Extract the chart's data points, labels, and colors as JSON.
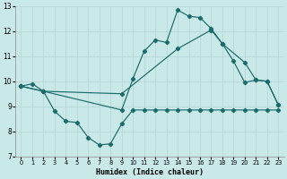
{
  "xlabel": "Humidex (Indice chaleur)",
  "bg_color": "#c9e8e8",
  "grid_color": "#dff0f0",
  "line_color": "#1a6b6b",
  "xlim": [
    -0.5,
    23.5
  ],
  "ylim": [
    7,
    13
  ],
  "xticks": [
    0,
    1,
    2,
    3,
    4,
    5,
    6,
    7,
    8,
    9,
    10,
    11,
    12,
    13,
    14,
    15,
    16,
    17,
    18,
    19,
    20,
    21,
    22,
    23
  ],
  "yticks": [
    7,
    8,
    9,
    10,
    11,
    12,
    13
  ],
  "line1_x": [
    0,
    1,
    2,
    3,
    4,
    5,
    6,
    7,
    8,
    9,
    10,
    11,
    12,
    13,
    14,
    15,
    16,
    17,
    18,
    19,
    20,
    21,
    22,
    23
  ],
  "line1_y": [
    9.8,
    9.9,
    9.6,
    8.8,
    8.4,
    8.35,
    7.75,
    7.45,
    7.5,
    8.3,
    8.85,
    8.85,
    8.85,
    8.85,
    8.85,
    8.85,
    8.85,
    8.85,
    8.85,
    8.85,
    8.85,
    8.85,
    8.85,
    8.85
  ],
  "line2_x": [
    0,
    2,
    9,
    10,
    11,
    12,
    13,
    14,
    15,
    16,
    17,
    18,
    19,
    20,
    21,
    22,
    23
  ],
  "line2_y": [
    9.8,
    9.6,
    8.85,
    10.1,
    11.2,
    11.65,
    11.55,
    12.85,
    12.6,
    12.55,
    12.1,
    11.5,
    10.8,
    9.95,
    10.05,
    10.0,
    9.05
  ],
  "line3_x": [
    0,
    2,
    9,
    14,
    17,
    18,
    20,
    21,
    22,
    23
  ],
  "line3_y": [
    9.8,
    9.6,
    9.5,
    11.3,
    12.05,
    11.5,
    10.75,
    10.05,
    10.0,
    9.05
  ]
}
